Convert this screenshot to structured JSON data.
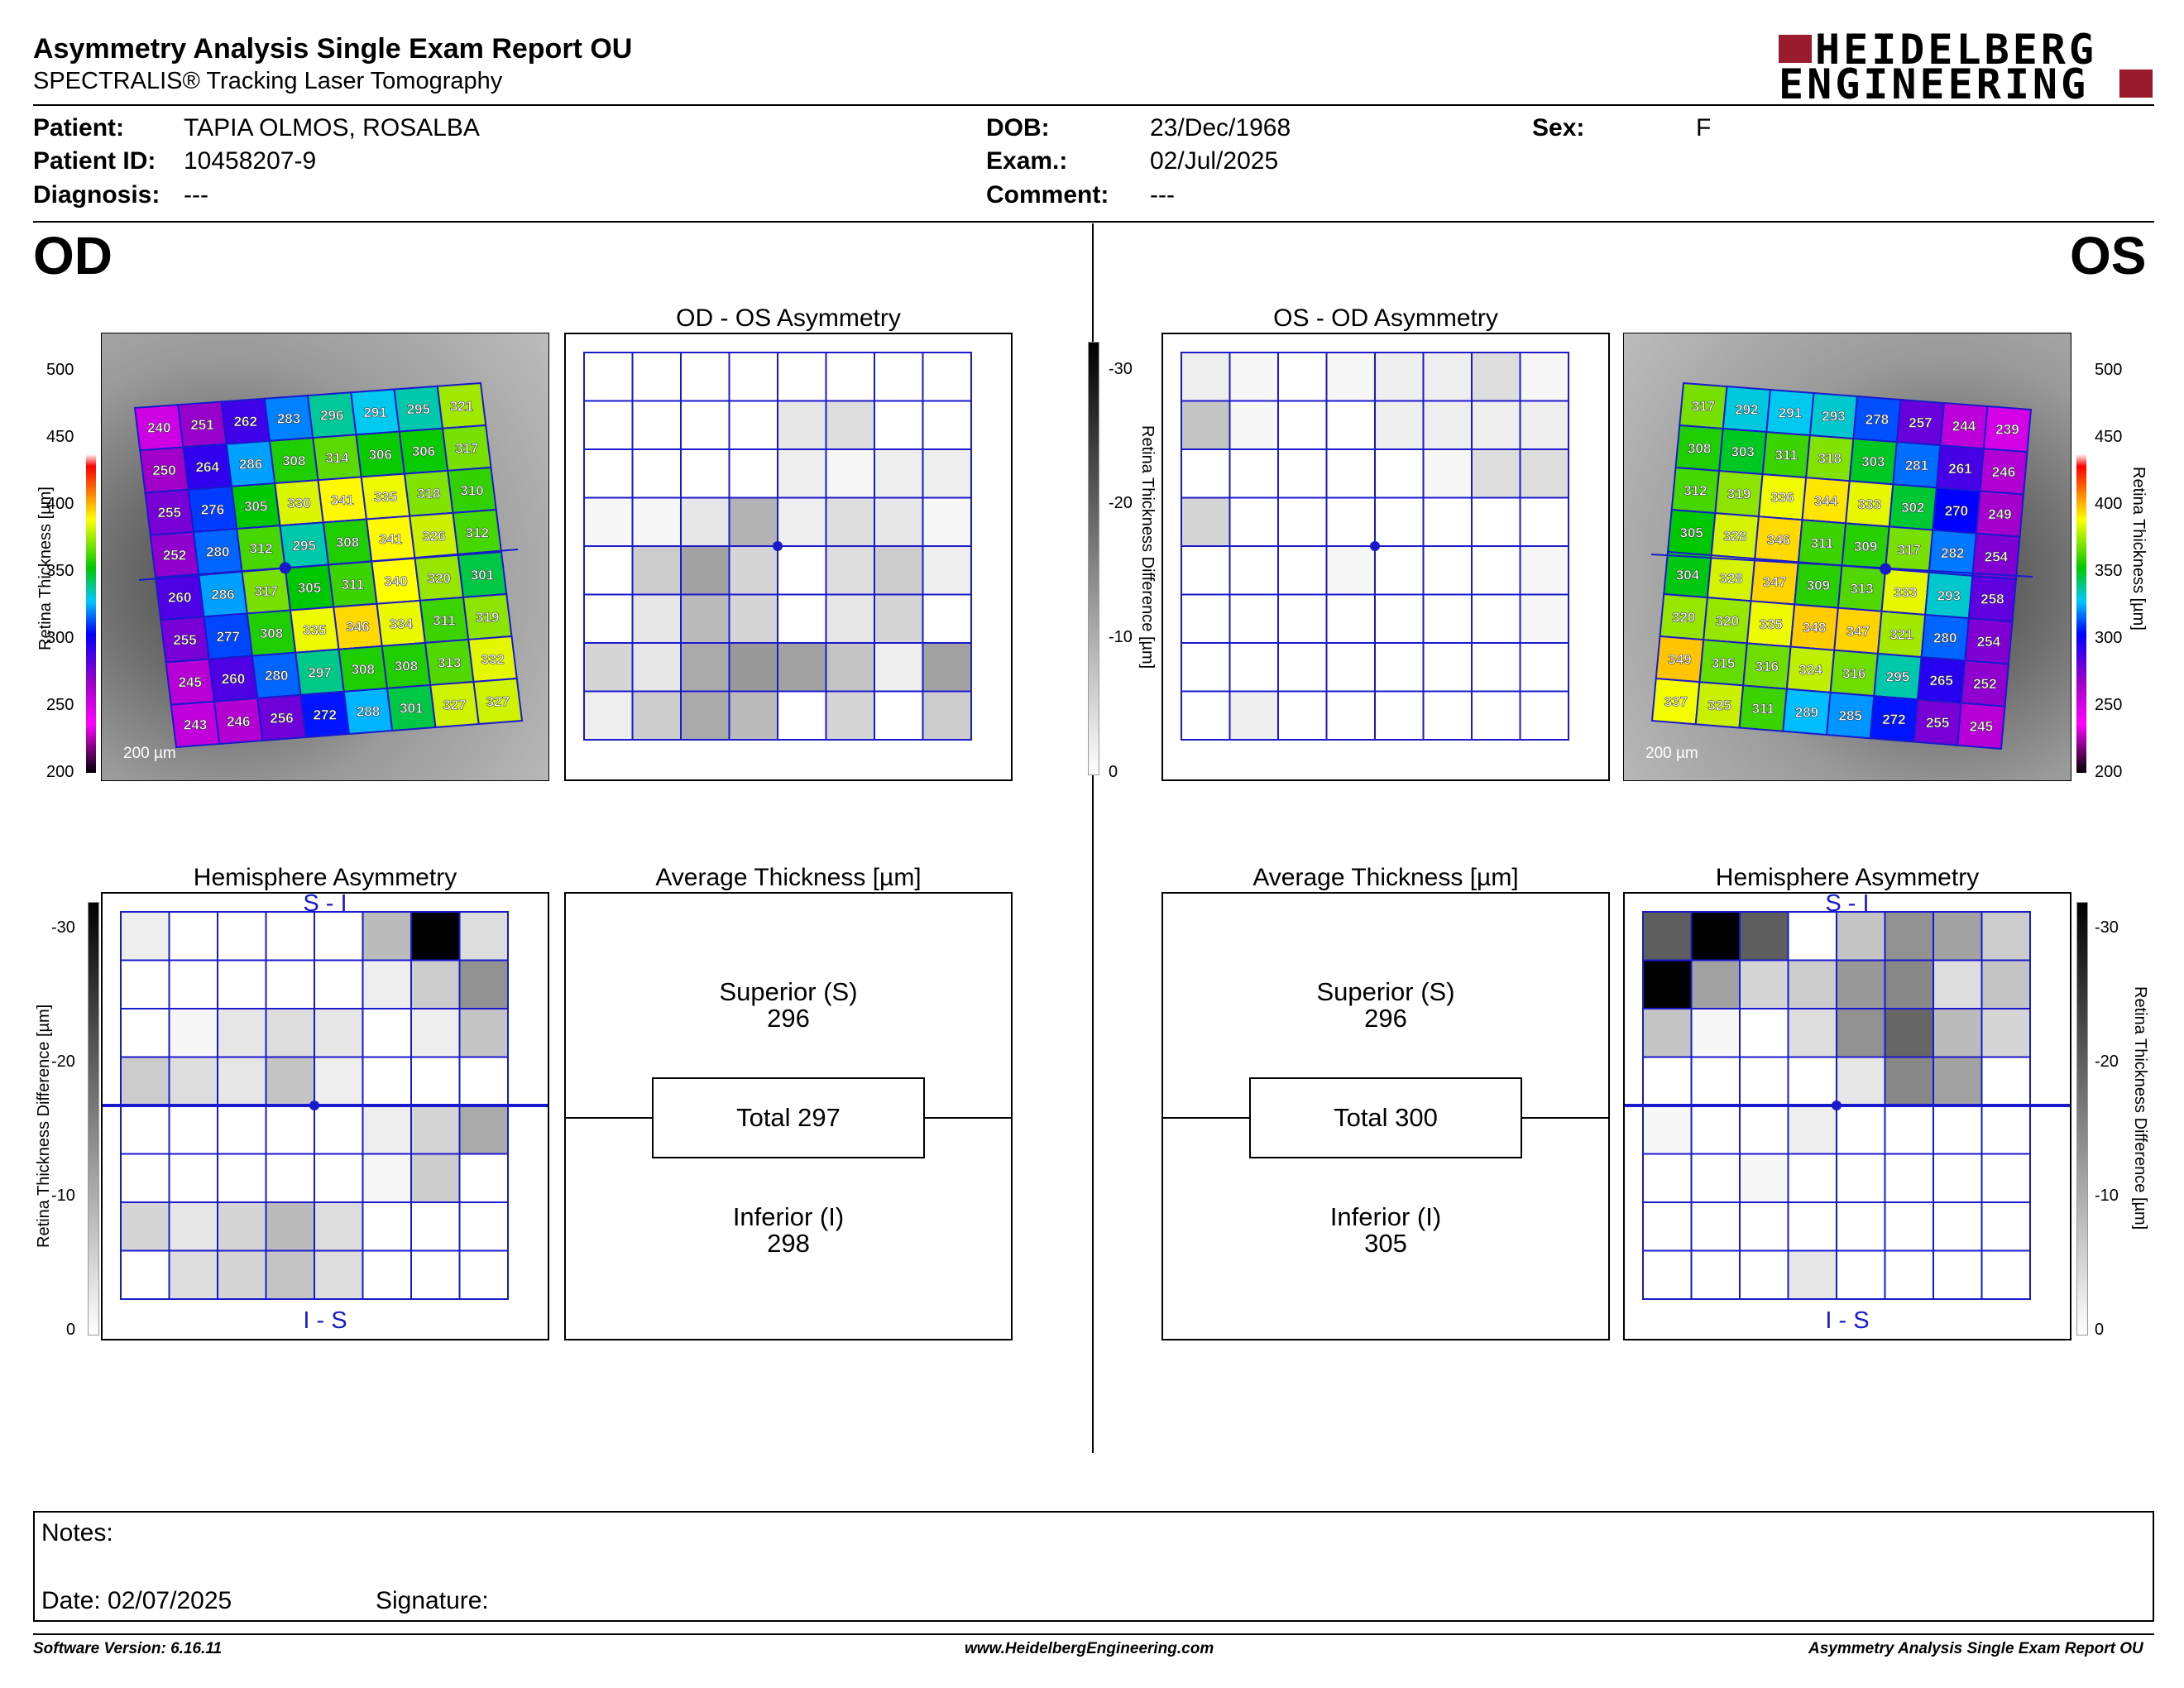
{
  "header": {
    "title": "Asymmetry Analysis Single Exam Report OU",
    "subtitle": "SPECTRALIS® Tracking Laser Tomography",
    "logo_line1": "HEIDELBERG",
    "logo_line2": "ENGINEERING",
    "logo_accent": "#9b1b2e"
  },
  "patient": {
    "patient_label": "Patient:",
    "patient_value": "TAPIA OLMOS, ROSALBA",
    "id_label": "Patient ID:",
    "id_value": "10458207-9",
    "diagnosis_label": "Diagnosis:",
    "diagnosis_value": "---",
    "dob_label": "DOB:",
    "dob_value": "23/Dec/1968",
    "exam_label": "Exam.:",
    "exam_value": "02/Jul/2025",
    "comment_label": "Comment:",
    "comment_value": "---",
    "sex_label": "Sex:",
    "sex_value": "F"
  },
  "od": {
    "eye": "OD",
    "thickness_scale": [
      "500",
      "450",
      "400",
      "350",
      "300",
      "250",
      "200"
    ],
    "thickness_axis": "Retina Thickness [µm]",
    "scale_bar": "200 µm",
    "thickness_grid": [
      [
        240,
        251,
        262,
        283,
        296,
        291,
        295,
        321
      ],
      [
        250,
        264,
        286,
        308,
        314,
        306,
        306,
        317
      ],
      [
        255,
        276,
        305,
        330,
        341,
        335,
        318,
        310
      ],
      [
        252,
        280,
        312,
        295,
        308,
        341,
        326,
        312
      ],
      [
        260,
        286,
        317,
        305,
        311,
        340,
        320,
        301
      ],
      [
        255,
        277,
        308,
        335,
        346,
        334,
        311,
        319
      ],
      [
        245,
        260,
        280,
        297,
        308,
        308,
        313,
        332
      ],
      [
        243,
        246,
        256,
        272,
        288,
        301,
        327,
        327
      ]
    ],
    "asym_title": "OD - OS Asymmetry",
    "asym_grid": [
      [
        0,
        0,
        0,
        0,
        0,
        0,
        0,
        0
      ],
      [
        0,
        0,
        0,
        0,
        3,
        4,
        0,
        0
      ],
      [
        0,
        0,
        0,
        0,
        2,
        1,
        2,
        2
      ],
      [
        1,
        1,
        3,
        9,
        2,
        4,
        3,
        1
      ],
      [
        0,
        6,
        11,
        5,
        0,
        4,
        6,
        2
      ],
      [
        0,
        3,
        8,
        5,
        0,
        3,
        5,
        0
      ],
      [
        5,
        3,
        10,
        12,
        11,
        7,
        2,
        11
      ],
      [
        2,
        6,
        10,
        8,
        0,
        5,
        0,
        6
      ]
    ],
    "hemi_title": "Hemisphere Asymmetry",
    "hemi_top": "S - I",
    "hemi_bottom": "I - S",
    "hemi_grid": [
      [
        2,
        0,
        0,
        0,
        0,
        8,
        30,
        4
      ],
      [
        0,
        0,
        0,
        0,
        0,
        2,
        6,
        13
      ],
      [
        0,
        1,
        3,
        4,
        3,
        0,
        2,
        7
      ],
      [
        6,
        4,
        3,
        7,
        2,
        0,
        0,
        0
      ],
      [
        0,
        0,
        0,
        0,
        0,
        2,
        5,
        10
      ],
      [
        0,
        0,
        0,
        0,
        0,
        1,
        6,
        0
      ],
      [
        5,
        3,
        5,
        8,
        4,
        0,
        0,
        0
      ],
      [
        0,
        4,
        5,
        7,
        4,
        0,
        0,
        0
      ]
    ],
    "avg_title": "Average Thickness [µm]",
    "superior_label": "Superior (S)",
    "superior_value": "296",
    "total": "Total 297",
    "inferior_label": "Inferior (I)",
    "inferior_value": "298"
  },
  "os": {
    "eye": "OS",
    "thickness_scale": [
      "500",
      "450",
      "400",
      "350",
      "300",
      "250",
      "200"
    ],
    "thickness_axis": "Retina Thickness [µm]",
    "scale_bar": "200 µm",
    "thickness_grid": [
      [
        317,
        292,
        291,
        293,
        278,
        257,
        244,
        239
      ],
      [
        308,
        303,
        311,
        318,
        303,
        281,
        261,
        246
      ],
      [
        312,
        319,
        336,
        344,
        333,
        302,
        270,
        249
      ],
      [
        305,
        328,
        346,
        311,
        309,
        317,
        282,
        254
      ],
      [
        304,
        328,
        347,
        309,
        313,
        333,
        293,
        258
      ],
      [
        320,
        320,
        335,
        348,
        347,
        321,
        280,
        254
      ],
      [
        349,
        315,
        316,
        324,
        316,
        295,
        265,
        252
      ],
      [
        337,
        325,
        311,
        289,
        285,
        272,
        255,
        245
      ]
    ],
    "asym_title": "OS - OD Asymmetry",
    "asym_grid": [
      [
        2,
        1,
        0,
        1,
        2,
        2,
        4,
        1
      ],
      [
        7,
        1,
        0,
        0,
        2,
        2,
        2,
        2
      ],
      [
        0,
        0,
        0,
        0,
        0,
        1,
        4,
        4
      ],
      [
        5,
        0,
        0,
        0,
        0,
        0,
        0,
        0
      ],
      [
        0,
        0,
        0,
        1,
        0,
        0,
        0,
        1
      ],
      [
        0,
        0,
        0,
        0,
        0,
        0,
        0,
        1
      ],
      [
        0,
        0,
        0,
        0,
        0,
        0,
        0,
        0
      ],
      [
        0,
        2,
        0,
        0,
        0,
        0,
        0,
        0
      ]
    ],
    "hemi_title": "Hemisphere Asymmetry",
    "hemi_top": "S - I",
    "hemi_bottom": "I - S",
    "hemi_grid": [
      [
        19,
        30,
        19,
        0,
        7,
        13,
        11,
        6
      ],
      [
        30,
        11,
        5,
        6,
        12,
        14,
        4,
        7
      ],
      [
        7,
        1,
        0,
        4,
        13,
        18,
        8,
        5
      ],
      [
        0,
        0,
        0,
        0,
        3,
        14,
        11,
        0
      ],
      [
        1,
        0,
        0,
        2,
        0,
        0,
        0,
        0
      ],
      [
        0,
        0,
        1,
        0,
        0,
        0,
        0,
        0
      ],
      [
        0,
        0,
        0,
        0,
        0,
        0,
        0,
        0
      ],
      [
        0,
        0,
        0,
        3,
        0,
        0,
        0,
        0
      ]
    ],
    "avg_title": "Average Thickness [µm]",
    "superior_label": "Superior (S)",
    "superior_value": "296",
    "total": "Total 300",
    "inferior_label": "Inferior (I)",
    "inferior_value": "305"
  },
  "diff_scale": {
    "ticks": [
      "-30",
      "-20",
      "-10",
      "0"
    ],
    "axis_label": "Retina Thickness Difference [µm]"
  },
  "notes": {
    "notes_label": "Notes:",
    "date_label": "Date: 02/07/2025",
    "signature_label": "Signature:"
  },
  "footer": {
    "software": "Software Version: 6.16.11",
    "website": "www.HeidelbergEngineering.com",
    "report_name": "Asymmetry Analysis Single Exam Report OU"
  }
}
